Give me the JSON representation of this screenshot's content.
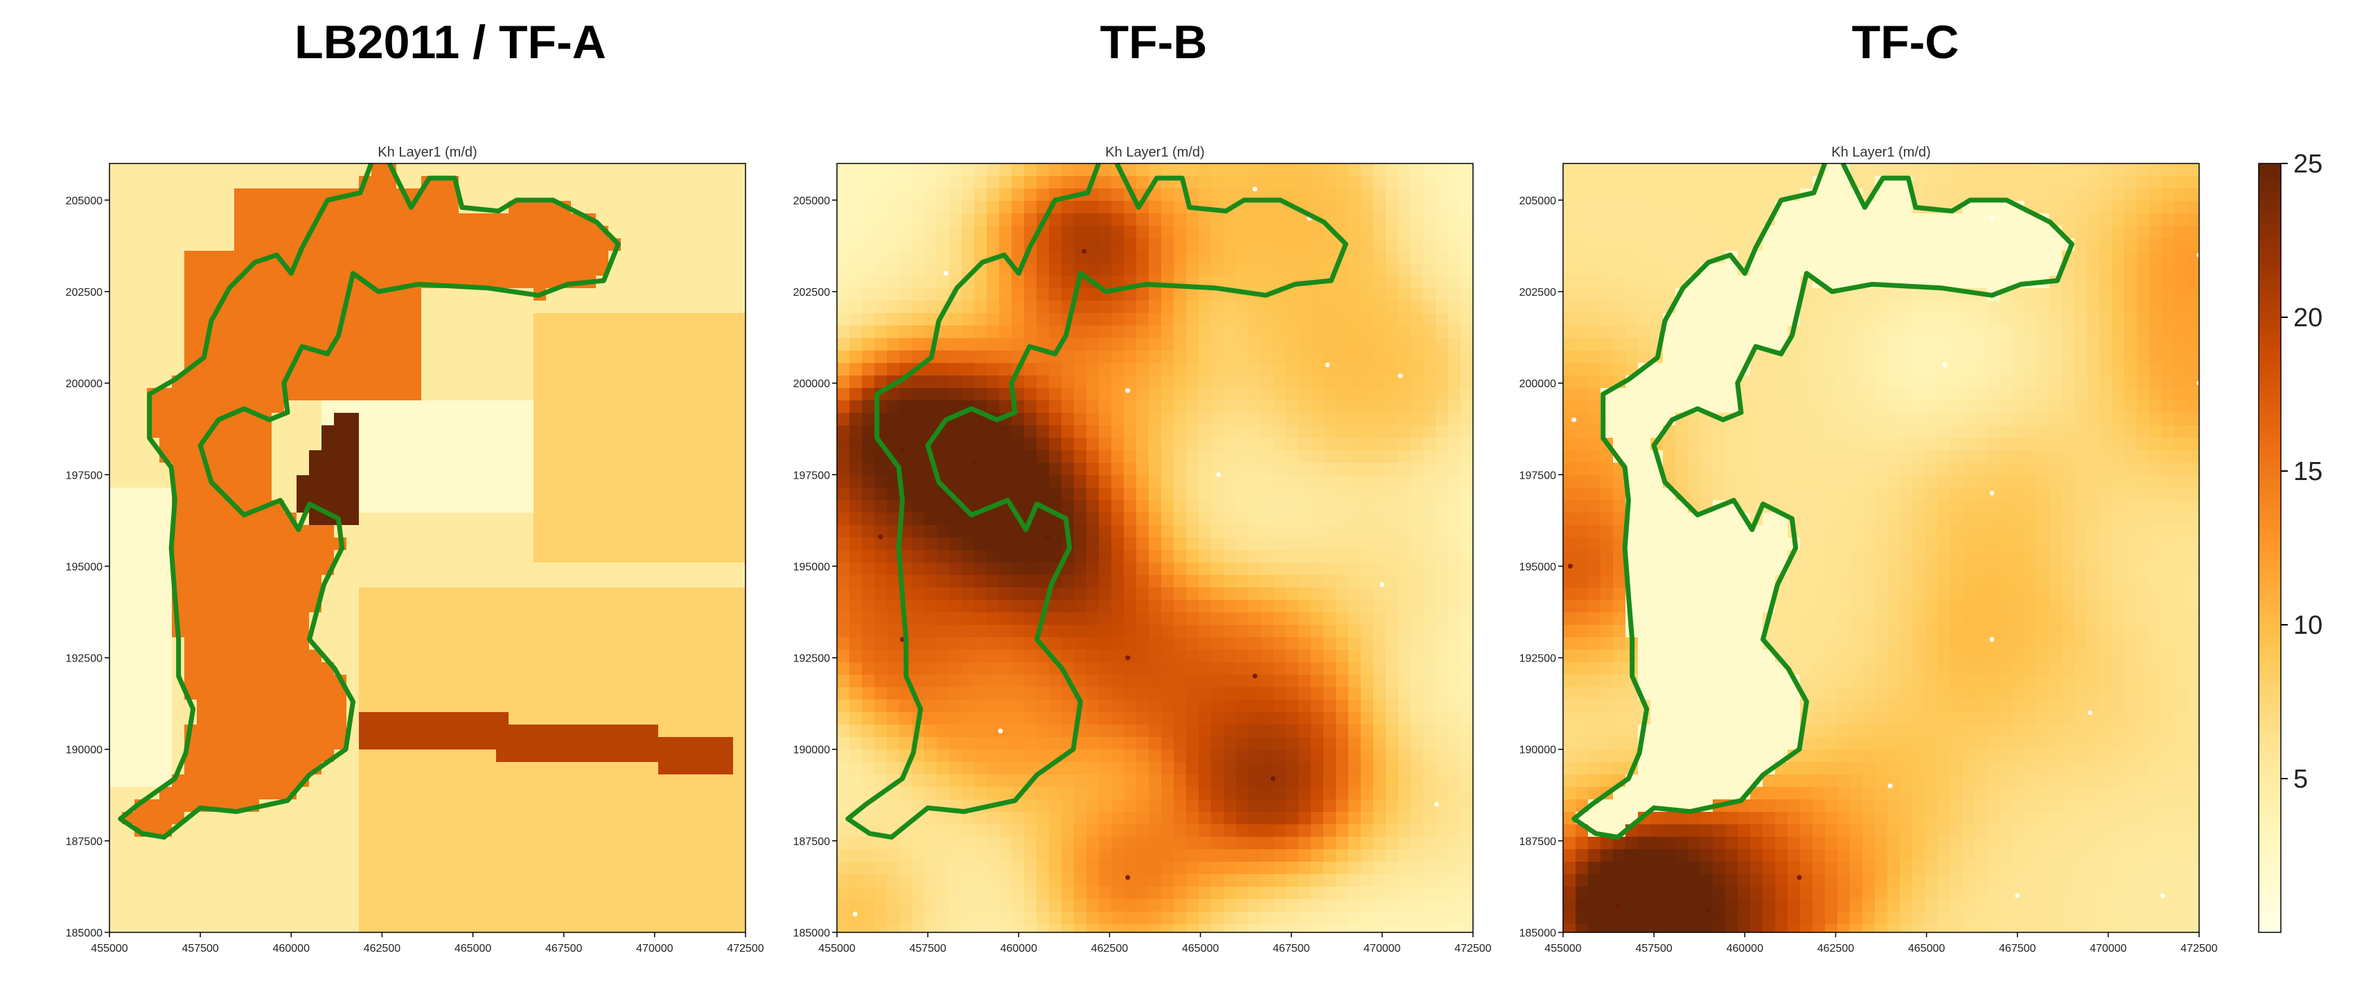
{
  "chart_data": [
    {
      "type": "heatmap",
      "title": "LB2011 / TF-A",
      "subtitle": "Kh Layer1 (m/d)",
      "xlabel": "",
      "ylabel": "",
      "xlim": [
        455000,
        472500
      ],
      "ylim": [
        185000,
        206000
      ],
      "x_ticks": [
        "455000",
        "457500",
        "460000",
        "462500",
        "465000",
        "467500",
        "470000",
        "472500"
      ],
      "y_ticks": [
        "185000",
        "187500",
        "190000",
        "192500",
        "195000",
        "197500",
        "200000",
        "202500",
        "205000"
      ],
      "surface": "piecewise zones",
      "zones": [
        {
          "value": 2,
          "description": "background"
        },
        {
          "value": 5,
          "description": "middle and lower zones"
        },
        {
          "value": 8,
          "description": "lower right zone"
        },
        {
          "value": 15,
          "description": "main zone along the outlined area"
        },
        {
          "value": 20,
          "description": "lower right band"
        },
        {
          "value": 25,
          "description": "narrow zone near x 460000-462500, y 196000-199000"
        }
      ]
    },
    {
      "type": "heatmap",
      "title": "TF-B",
      "subtitle": "Kh Layer1 (m/d)",
      "xlabel": "",
      "ylabel": "",
      "xlim": [
        455000,
        472500
      ],
      "ylim": [
        185000,
        206000
      ],
      "x_ticks": [
        "455000",
        "457500",
        "460000",
        "462500",
        "465000",
        "467500",
        "470000",
        "472500"
      ],
      "y_ticks": [
        "185000",
        "187500",
        "190000",
        "192500",
        "195000",
        "197500",
        "200000",
        "202500",
        "205000"
      ],
      "surface": "interpolated from point values",
      "background_value": 3,
      "points": [
        {
          "x": 456800,
          "y": 198200,
          "value": 25
        },
        {
          "x": 458800,
          "y": 197800,
          "value": 25
        },
        {
          "x": 460800,
          "y": 195800,
          "value": 24
        },
        {
          "x": 461800,
          "y": 203600,
          "value": 22
        },
        {
          "x": 456800,
          "y": 193000,
          "value": 16
        },
        {
          "x": 463000,
          "y": 192500,
          "value": 17
        },
        {
          "x": 467000,
          "y": 189200,
          "value": 22
        },
        {
          "x": 466500,
          "y": 192000,
          "value": 14
        },
        {
          "x": 463000,
          "y": 186500,
          "value": 14
        },
        {
          "x": 456200,
          "y": 195800,
          "value": 13
        },
        {
          "x": 463000,
          "y": 199800,
          "value": 10
        },
        {
          "x": 468500,
          "y": 200500,
          "value": 9
        },
        {
          "x": 470500,
          "y": 200200,
          "value": 8
        },
        {
          "x": 468000,
          "y": 204500,
          "value": 9
        },
        {
          "x": 466500,
          "y": 205300,
          "value": 8
        },
        {
          "x": 455500,
          "y": 185500,
          "value": 9
        },
        {
          "x": 459500,
          "y": 190500,
          "value": 11
        },
        {
          "x": 465500,
          "y": 197500,
          "value": 4
        },
        {
          "x": 470000,
          "y": 194500,
          "value": 6
        },
        {
          "x": 471500,
          "y": 188500,
          "value": 6
        },
        {
          "x": 458000,
          "y": 203000,
          "value": 4
        }
      ]
    },
    {
      "type": "heatmap",
      "title": "TF-C",
      "subtitle": "Kh Layer1 (m/d)",
      "xlabel": "",
      "ylabel": "",
      "xlim": [
        455000,
        472500
      ],
      "ylim": [
        185000,
        206000
      ],
      "x_ticks": [
        "455000",
        "457500",
        "460000",
        "462500",
        "465000",
        "467500",
        "470000",
        "472500"
      ],
      "y_ticks": [
        "185000",
        "187500",
        "190000",
        "192500",
        "195000",
        "197500",
        "200000",
        "202500",
        "205000"
      ],
      "surface": "interpolated from point values, outlined area fixed low",
      "background_value": 6,
      "inside_value": 2,
      "points": [
        {
          "x": 456500,
          "y": 185700,
          "value": 25
        },
        {
          "x": 459000,
          "y": 185600,
          "value": 24
        },
        {
          "x": 461500,
          "y": 186500,
          "value": 14
        },
        {
          "x": 455200,
          "y": 195000,
          "value": 17
        },
        {
          "x": 455300,
          "y": 199000,
          "value": 11
        },
        {
          "x": 472500,
          "y": 203500,
          "value": 12
        },
        {
          "x": 472500,
          "y": 200000,
          "value": 11
        },
        {
          "x": 466800,
          "y": 197000,
          "value": 9
        },
        {
          "x": 466800,
          "y": 193000,
          "value": 10
        },
        {
          "x": 464000,
          "y": 189000,
          "value": 9
        },
        {
          "x": 466800,
          "y": 204500,
          "value": 7
        },
        {
          "x": 469500,
          "y": 191000,
          "value": 7
        },
        {
          "x": 467500,
          "y": 186000,
          "value": 6
        },
        {
          "x": 471500,
          "y": 186000,
          "value": 5
        },
        {
          "x": 465500,
          "y": 200500,
          "value": 3
        }
      ]
    }
  ],
  "colorbar": {
    "min": 0,
    "max": 25,
    "ticks": [
      "5",
      "10",
      "15",
      "20",
      "25"
    ],
    "colormap": "YlOrBr",
    "stops": [
      "#ffffe5",
      "#fff7bc",
      "#fee391",
      "#fec44f",
      "#fe9929",
      "#ec7014",
      "#cc4c02",
      "#993404",
      "#662506"
    ]
  },
  "outline_color": "#1a8a1a",
  "outline_path_data": [
    [
      462700,
      206000
    ],
    [
      463300,
      204800
    ],
    [
      463800,
      205600
    ],
    [
      464500,
      205600
    ],
    [
      464700,
      204800
    ],
    [
      465700,
      204700
    ],
    [
      466200,
      205000
    ],
    [
      467200,
      205000
    ],
    [
      468400,
      204400
    ],
    [
      469000,
      203800
    ],
    [
      468600,
      202800
    ],
    [
      467600,
      202700
    ],
    [
      466800,
      202400
    ],
    [
      465400,
      202600
    ],
    [
      463500,
      202700
    ],
    [
      462400,
      202500
    ],
    [
      461700,
      203000
    ],
    [
      461300,
      201300
    ],
    [
      461000,
      200800
    ],
    [
      460300,
      201000
    ],
    [
      459800,
      200000
    ],
    [
      459900,
      199200
    ],
    [
      459400,
      199000
    ],
    [
      458700,
      199300
    ],
    [
      458000,
      199000
    ],
    [
      457500,
      198300
    ],
    [
      457800,
      197300
    ],
    [
      458700,
      196400
    ],
    [
      459700,
      196800
    ],
    [
      460200,
      196000
    ],
    [
      460500,
      196700
    ],
    [
      461300,
      196300
    ],
    [
      461400,
      195500
    ],
    [
      460900,
      194500
    ],
    [
      460500,
      193000
    ],
    [
      461200,
      192200
    ],
    [
      461700,
      191300
    ],
    [
      461500,
      190000
    ],
    [
      460500,
      189300
    ],
    [
      459900,
      188600
    ],
    [
      458500,
      188300
    ],
    [
      457500,
      188400
    ],
    [
      457000,
      188000
    ],
    [
      456500,
      187600
    ],
    [
      455900,
      187700
    ],
    [
      455300,
      188100
    ],
    [
      455800,
      188500
    ],
    [
      456800,
      189200
    ],
    [
      457100,
      189900
    ],
    [
      457300,
      191100
    ],
    [
      456900,
      192000
    ],
    [
      456900,
      193000
    ],
    [
      456800,
      194200
    ],
    [
      456700,
      195500
    ],
    [
      456800,
      196800
    ],
    [
      456700,
      197700
    ],
    [
      456100,
      198500
    ],
    [
      456100,
      199700
    ],
    [
      456800,
      200100
    ],
    [
      457600,
      200700
    ],
    [
      457800,
      201700
    ],
    [
      458300,
      202600
    ],
    [
      459000,
      203300
    ],
    [
      459600,
      203500
    ],
    [
      460000,
      203000
    ],
    [
      460300,
      203700
    ],
    [
      461000,
      205000
    ],
    [
      461900,
      205200
    ],
    [
      462200,
      206000
    ]
  ]
}
